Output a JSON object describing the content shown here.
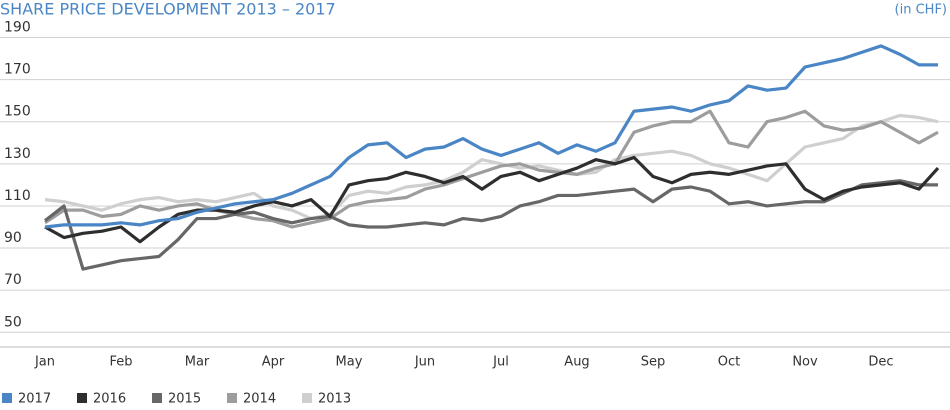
{
  "chart_data": {
    "type": "line",
    "title": "SHARE PRICE DEVELOPMENT 2013 – 2017",
    "subtitle": "(in CHF)",
    "categories": [
      "Jan",
      null,
      null,
      null,
      "Feb",
      null,
      null,
      null,
      "Mar",
      null,
      null,
      null,
      "Apr",
      null,
      null,
      null,
      "May",
      null,
      null,
      null,
      "Jun",
      null,
      null,
      null,
      "Jul",
      null,
      null,
      null,
      "Aug",
      null,
      null,
      null,
      "Sep",
      null,
      null,
      null,
      "Oct",
      null,
      null,
      null,
      "Nov",
      null,
      null,
      null,
      "Dec",
      null,
      null,
      null
    ],
    "ylim": [
      43,
      195
    ],
    "yticks": [
      50,
      70,
      90,
      110,
      130,
      150,
      170,
      190
    ],
    "grid": true,
    "legend": "bottom",
    "series": [
      {
        "name": "2017",
        "color": "#4a86c5",
        "values": [
          100,
          101,
          101,
          101,
          102,
          101,
          103,
          104,
          107,
          109,
          111,
          112,
          113,
          116,
          120,
          124,
          133,
          139,
          140,
          133,
          137,
          138,
          142,
          137,
          134,
          137,
          140,
          135,
          139,
          136,
          140,
          155,
          156,
          157,
          155,
          158,
          160,
          167,
          165,
          166,
          176,
          178,
          180,
          183,
          186,
          182,
          177,
          177
        ]
      },
      {
        "name": "2016",
        "color": "#2e2e2e",
        "values": [
          100,
          95,
          97,
          98,
          100,
          93,
          100,
          106,
          108,
          108,
          107,
          110,
          112,
          110,
          113,
          105,
          120,
          122,
          123,
          126,
          124,
          121,
          124,
          118,
          124,
          126,
          122,
          125,
          128,
          132,
          130,
          133,
          124,
          121,
          125,
          126,
          125,
          127,
          129,
          130,
          118,
          113,
          117,
          119,
          120,
          121,
          118,
          128
        ]
      },
      {
        "name": "2015",
        "color": "#676767",
        "values": [
          103,
          110,
          80,
          82,
          84,
          85,
          86,
          94,
          104,
          104,
          106,
          107,
          104,
          102,
          104,
          105,
          101,
          100,
          100,
          101,
          102,
          101,
          104,
          103,
          105,
          110,
          112,
          115,
          115,
          116,
          117,
          118,
          112,
          118,
          119,
          117,
          111,
          112,
          110,
          111,
          112,
          112,
          116,
          120,
          121,
          122,
          120,
          120
        ]
      },
      {
        "name": "2014",
        "color": "#9d9d9d",
        "values": [
          102,
          108,
          108,
          105,
          106,
          110,
          108,
          110,
          111,
          108,
          106,
          104,
          103,
          100,
          102,
          104,
          110,
          112,
          113,
          114,
          118,
          120,
          123,
          126,
          129,
          130,
          127,
          126,
          125,
          128,
          130,
          145,
          148,
          150,
          150,
          155,
          140,
          138,
          150,
          152,
          155,
          148,
          146,
          147,
          150,
          145,
          140,
          145
        ]
      },
      {
        "name": "2013",
        "color": "#cfcfcf",
        "values": [
          113,
          112,
          110,
          108,
          111,
          113,
          114,
          112,
          113,
          112,
          114,
          116,
          110,
          108,
          104,
          106,
          115,
          117,
          116,
          119,
          120,
          122,
          126,
          132,
          130,
          128,
          129,
          127,
          125,
          126,
          132,
          134,
          135,
          136,
          134,
          130,
          128,
          125,
          122,
          130,
          138,
          140,
          142,
          148,
          150,
          153,
          152,
          150
        ]
      }
    ]
  }
}
